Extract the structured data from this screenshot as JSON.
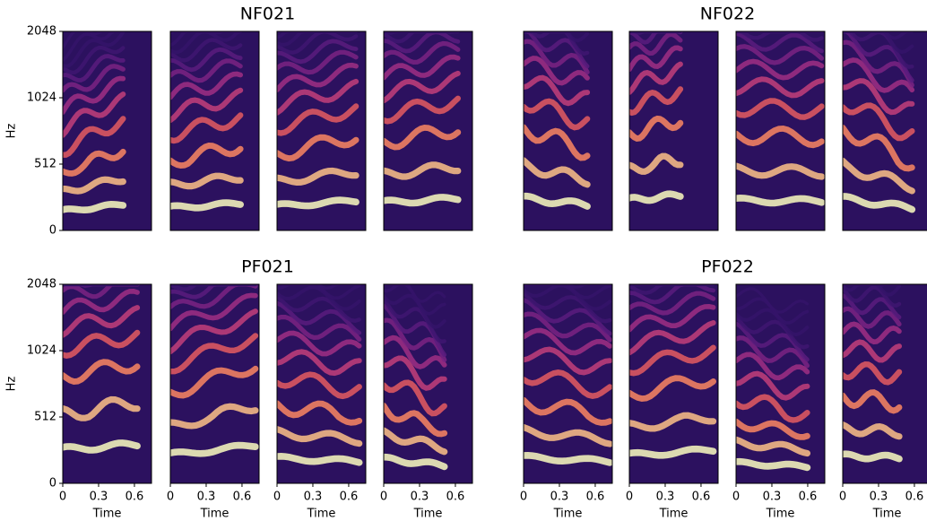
{
  "chart_data": [
    {
      "type": "spectrogram",
      "title": "NF021",
      "ylabel": "Hz",
      "ylim": [
        0,
        2048
      ],
      "yticks": [
        0,
        512,
        1024,
        2048
      ],
      "yscale": "symlog",
      "linthresh": 512
    },
    {
      "type": "spectrogram",
      "title": "NF022",
      "ylim": [
        0,
        2048
      ],
      "yscale": "symlog",
      "linthresh": 512
    },
    {
      "type": "spectrogram",
      "title": "PF021",
      "ylabel": "Hz",
      "xlabel": "Time",
      "xlim": [
        0,
        0.743
      ],
      "xticks": [
        0,
        0.3,
        0.6
      ],
      "ylim": [
        0,
        2048
      ],
      "yticks": [
        0,
        512,
        1024,
        2048
      ],
      "yscale": "symlog",
      "linthresh": 512
    },
    {
      "type": "spectrogram",
      "title": "PF022",
      "xlabel": "Time",
      "xlim": [
        0,
        0.743
      ],
      "xticks": [
        0,
        0.3,
        0.6
      ],
      "ylim": [
        0,
        2048
      ],
      "yscale": "symlog",
      "linthresh": 512
    }
  ]
}
